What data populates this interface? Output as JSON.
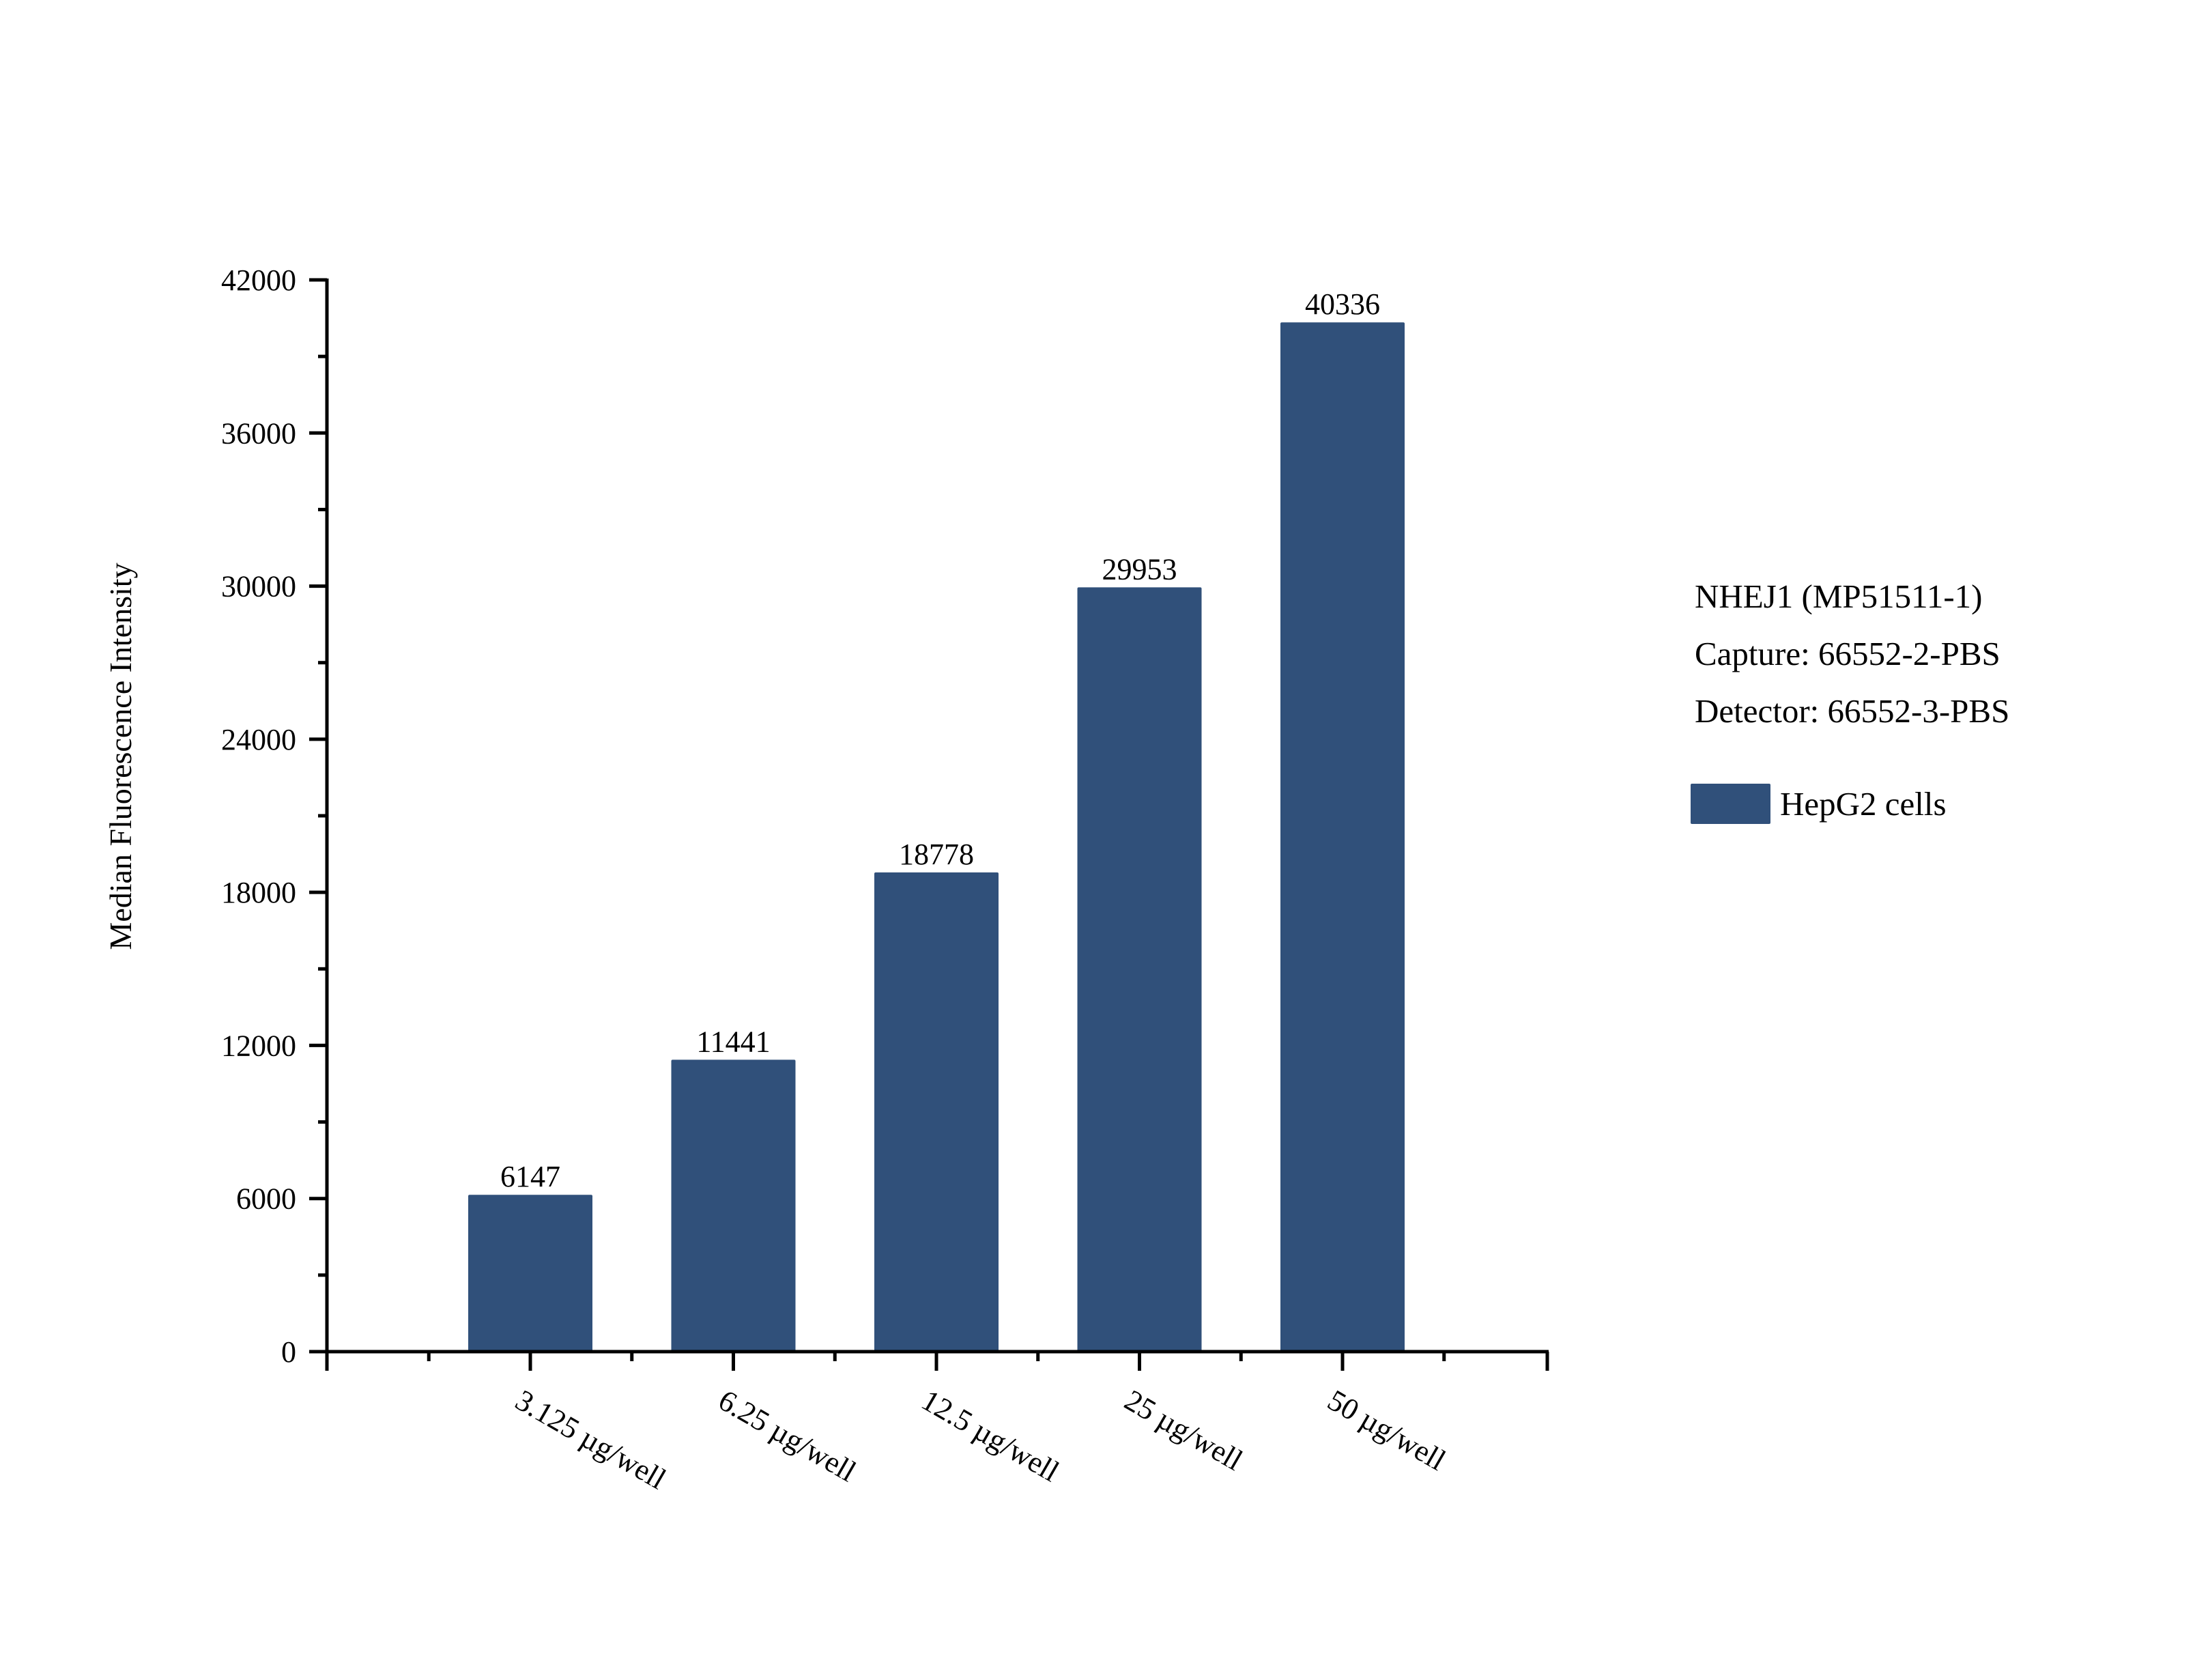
{
  "chart_data": {
    "type": "bar",
    "title": "",
    "categories": [
      "3.125 µg/well",
      "6.25 µg/well",
      "12.5 µg/well",
      "25 µg/well",
      "50 µg/well"
    ],
    "series": [
      {
        "name": "HepG2 cells",
        "values": [
          6147,
          11441,
          18778,
          29953,
          40336
        ],
        "color": "#30507A"
      }
    ],
    "value_labels": [
      "6147",
      "11441",
      "18778",
      "29953",
      "40336"
    ],
    "xlabel": "",
    "ylabel": "Median Fluorescence Intensity",
    "ylim": [
      0,
      42000
    ],
    "yticks": [
      0,
      6000,
      12000,
      18000,
      24000,
      30000,
      36000,
      42000
    ],
    "ytick_labels": [
      "0",
      "6000",
      "12000",
      "18000",
      "24000",
      "30000",
      "36000",
      "42000"
    ],
    "grid": false,
    "legend_position": "right",
    "annotations": [
      "NHEJ1 (MP51511-1)",
      "Capture: 66552-2-PBS",
      "Detector: 66552-3-PBS"
    ]
  },
  "annotation": {
    "line1": "NHEJ1 (MP51511-1)",
    "line2": "Capture: 66552-2-PBS",
    "line3": "Detector: 66552-3-PBS"
  },
  "legend": {
    "label": "HepG2 cells",
    "color": "#30507A"
  }
}
